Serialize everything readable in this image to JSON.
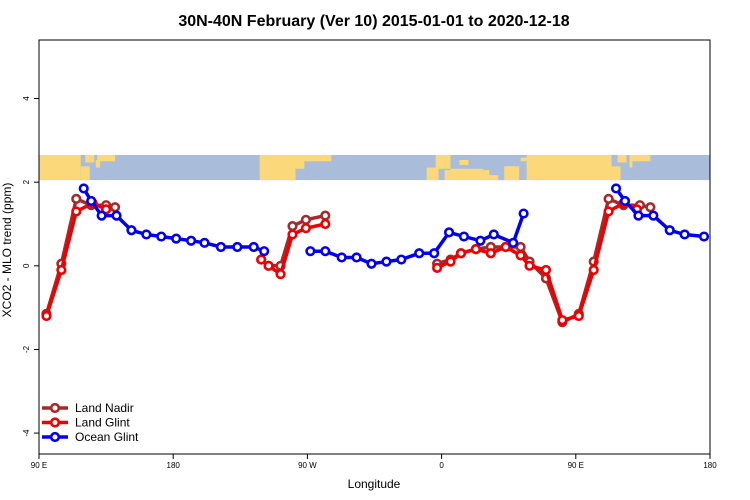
{
  "chart_data": {
    "type": "line",
    "title": "30N-40N February (Ver 10)   2015-01-01 to 2020-12-18",
    "xlabel": "Longitude",
    "ylabel": "XCO2 - MLO trend (ppm)",
    "xlim": [
      90,
      540
    ],
    "ylim": [
      -4.5,
      5.4
    ],
    "x_ticks": [
      {
        "value": 90,
        "label": "90 E"
      },
      {
        "value": 180,
        "label": "180"
      },
      {
        "value": 270,
        "label": "90 W"
      },
      {
        "value": 360,
        "label": "0"
      },
      {
        "value": 450,
        "label": "90 E"
      },
      {
        "value": 540,
        "label": "180"
      }
    ],
    "y_ticks": [
      {
        "value": -4,
        "label": "-4"
      },
      {
        "value": -2,
        "label": "-2"
      },
      {
        "value": 0,
        "label": "0"
      },
      {
        "value": 2,
        "label": "2"
      },
      {
        "value": 4,
        "label": "4"
      }
    ],
    "legend_position": "bottom-left",
    "map_strip": {
      "ymin": 2.05,
      "ymax": 2.65,
      "ocean_color": "#a9bcd9",
      "land_color": "#fbd87a"
    },
    "series": [
      {
        "name": "Land Nadir",
        "color": "#a52a2a",
        "segments": [
          [
            [
              95,
              -1.15
            ],
            [
              105,
              0.05
            ],
            [
              115,
              1.6
            ],
            [
              125,
              1.45
            ],
            [
              135,
              1.45
            ],
            [
              141,
              1.4
            ]
          ],
          [
            [
              239,
              0.15
            ],
            [
              244,
              0.0
            ],
            [
              252,
              0.0
            ],
            [
              260,
              0.95
            ],
            [
              269,
              1.1
            ],
            [
              282,
              1.2
            ]
          ],
          [
            [
              357,
              0.05
            ],
            [
              366,
              0.15
            ],
            [
              373,
              0.3
            ],
            [
              383,
              0.4
            ],
            [
              393,
              0.45
            ],
            [
              403,
              0.45
            ],
            [
              413,
              0.45
            ],
            [
              419,
              0.1
            ],
            [
              430,
              -0.3
            ],
            [
              441,
              -1.35
            ],
            [
              452,
              -1.15
            ],
            [
              462,
              0.1
            ],
            [
              472,
              1.6
            ],
            [
              482,
              1.45
            ],
            [
              493,
              1.45
            ],
            [
              500,
              1.4
            ]
          ]
        ]
      },
      {
        "name": "Land Glint",
        "color": "#ee0000",
        "segments": [
          [
            [
              95,
              -1.2
            ],
            [
              105,
              -0.1
            ],
            [
              115,
              1.3
            ],
            [
              126,
              1.5
            ],
            [
              135,
              1.35
            ]
          ],
          [
            [
              239,
              0.15
            ],
            [
              244,
              0.0
            ],
            [
              252,
              -0.2
            ],
            [
              260,
              0.75
            ],
            [
              269,
              0.9
            ],
            [
              282,
              1.0
            ]
          ],
          [
            [
              357,
              -0.05
            ],
            [
              366,
              0.1
            ],
            [
              373,
              0.3
            ],
            [
              383,
              0.4
            ],
            [
              393,
              0.3
            ],
            [
              403,
              0.45
            ],
            [
              413,
              0.25
            ],
            [
              419,
              0.0
            ],
            [
              430,
              -0.1
            ],
            [
              441,
              -1.3
            ],
            [
              452,
              -1.2
            ],
            [
              462,
              -0.1
            ],
            [
              472,
              1.3
            ],
            [
              482,
              1.5
            ],
            [
              491,
              1.35
            ]
          ]
        ]
      },
      {
        "name": "Ocean Glint",
        "color": "#0000ee",
        "segments": [
          [
            [
              120,
              1.85
            ],
            [
              125,
              1.55
            ],
            [
              132,
              1.2
            ],
            [
              142,
              1.2
            ],
            [
              152,
              0.85
            ],
            [
              162,
              0.75
            ],
            [
              172,
              0.7
            ],
            [
              182,
              0.65
            ],
            [
              192,
              0.6
            ],
            [
              201,
              0.55
            ],
            [
              212,
              0.45
            ],
            [
              223,
              0.45
            ],
            [
              234,
              0.45
            ],
            [
              241,
              0.35
            ]
          ],
          [
            [
              272,
              0.35
            ],
            [
              282,
              0.35
            ],
            [
              293,
              0.2
            ],
            [
              303,
              0.2
            ],
            [
              313,
              0.05
            ],
            [
              323,
              0.1
            ],
            [
              333,
              0.15
            ],
            [
              345,
              0.3
            ],
            [
              355,
              0.3
            ],
            [
              365,
              0.8
            ],
            [
              375,
              0.7
            ],
            [
              386,
              0.6
            ],
            [
              395,
              0.75
            ],
            [
              408,
              0.55
            ],
            [
              415,
              1.25
            ]
          ],
          [
            [
              477,
              1.85
            ],
            [
              483,
              1.55
            ],
            [
              492,
              1.2
            ],
            [
              502,
              1.2
            ],
            [
              513,
              0.85
            ],
            [
              523,
              0.75
            ],
            [
              536,
              0.7
            ]
          ]
        ]
      }
    ]
  }
}
